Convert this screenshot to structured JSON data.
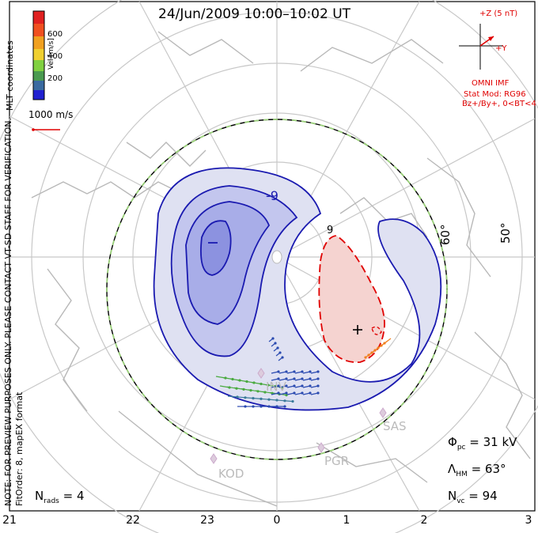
{
  "title": "24/Jun/2009  10:00–10:02  UT",
  "side_note": "NOTE: FOR PREVIEW PURPOSES ONLY. PLEASE CONTACT VT-SD STAFF FOR VERIFICATION.",
  "fit_info": "FitOrder: 8, mapEX format",
  "coords_label": "MLT coordinates",
  "colorbar": {
    "title": "Vel [m/s]",
    "ticks": [
      "600",
      "400",
      "200"
    ],
    "colors": [
      "#e02020",
      "#f07a20",
      "#f0c020",
      "#80d040",
      "#4a9a50",
      "#3a6aa0",
      "#2020d0"
    ]
  },
  "vector_scale": {
    "label": "1000 m/s",
    "color": "#e00000"
  },
  "imf": {
    "label_z": "+Z (5 nT)",
    "label_y": "+Y",
    "source": "OMNI IMF",
    "model": "Stat Mod: RG96",
    "condition": "Bz+/By+, 0<BT<4"
  },
  "latitude_labels": [
    "60°",
    "50°"
  ],
  "mlt_ticks": [
    "21",
    "22",
    "23",
    "0",
    "1",
    "2",
    "3"
  ],
  "stations": [
    "INV",
    "SAS",
    "PGR",
    "KOD"
  ],
  "stats": {
    "n_rads_label": "N",
    "n_rads_sub": "rads",
    "n_rads_value": "= 4",
    "phi_label": "Φ",
    "phi_sub": "pc",
    "phi_value": "= 31 kV",
    "lambda_label": "Λ",
    "lambda_sub": "HM",
    "lambda_value": "= 63°",
    "nvc_label": "N",
    "nvc_sub": "vc",
    "nvc_value": "= 94"
  },
  "contour_marks": {
    "neg_max": "–",
    "pos_max": "+",
    "neg_label": "-9",
    "pos_label": "9"
  },
  "colors": {
    "negative": "#1a1ab0",
    "positive": "#e00000",
    "grid": "#c8c8c8",
    "coast": "#b8b8b8",
    "hmb": "#9ad07a"
  }
}
